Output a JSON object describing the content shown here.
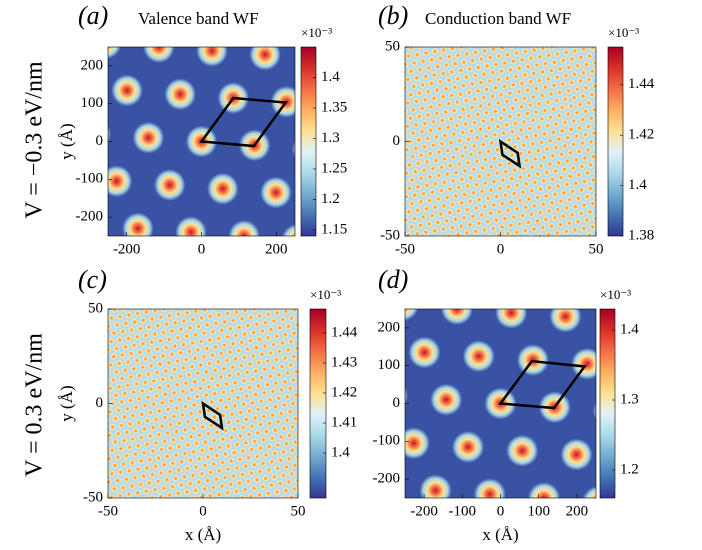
{
  "row_labels": [
    "V = −0.3 eV/nm",
    "V = 0.3 eV/nm"
  ],
  "chart_data": [
    {
      "type": "heatmap",
      "panel": "(a)",
      "title": "Valence band WF",
      "ylabel": "y (Å)",
      "xlim": [
        -250,
        250
      ],
      "ylim": [
        -250,
        250
      ],
      "xticks": [
        -200,
        0,
        200
      ],
      "yticks": [
        -200,
        -100,
        0,
        100,
        200
      ],
      "clim": [
        1.14,
        1.45
      ],
      "cticks": [
        1.15,
        1.2,
        1.25,
        1.3,
        1.35,
        1.4
      ],
      "cscale": "×10⁻³",
      "colormap": [
        "#313695",
        "#4575b4",
        "#74add1",
        "#abd9e9",
        "#e0f3f8",
        "#fee090",
        "#fdae61",
        "#f46d43",
        "#d73027",
        "#a50026"
      ],
      "background": "#3a52a3",
      "peak_colors": [
        "#c0182a",
        "#f46d43",
        "#fee090",
        "#abd9e9",
        "#3a52a3"
      ],
      "lattice": {
        "a1": [
          142,
          -10
        ],
        "a2": [
          85,
          115
        ],
        "radius": 42
      },
      "cell": {
        "x": [
          0,
          140,
          225,
          85
        ],
        "y": [
          0,
          -12,
          103,
          115
        ]
      }
    },
    {
      "type": "heatmap",
      "panel": "(b)",
      "title": "Conduction band WF",
      "xlim": [
        -50,
        50
      ],
      "ylim": [
        -50,
        50
      ],
      "xticks": [
        -50,
        0,
        50
      ],
      "yticks": [
        -50,
        0,
        50
      ],
      "clim": [
        1.38,
        1.455
      ],
      "cticks": [
        1.38,
        1.4,
        1.42,
        1.44
      ],
      "cscale": "×10⁻³",
      "colormap": [
        "#313695",
        "#4575b4",
        "#74add1",
        "#abd9e9",
        "#e0f3f8",
        "#fee090",
        "#fdae61",
        "#f46d43",
        "#d73027",
        "#a50026"
      ],
      "background": "#b9dcea",
      "peak_colors": [
        "#f57a45",
        "#fdb467",
        "#fee8a0",
        "#b9dcea"
      ],
      "lattice": {
        "a1": [
          4.6,
          0.8
        ],
        "a2": [
          1.6,
          4.4
        ],
        "radius": 1.9
      },
      "cell": {
        "x": [
          0,
          9,
          10,
          1
        ],
        "y": [
          0,
          -6,
          -13,
          -7
        ]
      }
    },
    {
      "type": "heatmap",
      "panel": "(c)",
      "xlabel": "x (Å)",
      "ylabel": "y (Å)",
      "xlim": [
        -50,
        50
      ],
      "ylim": [
        -50,
        50
      ],
      "xticks": [
        -50,
        0,
        50
      ],
      "yticks": [
        -50,
        0,
        50
      ],
      "clim": [
        1.385,
        1.448
      ],
      "cticks": [
        1.4,
        1.41,
        1.42,
        1.43,
        1.44
      ],
      "cscale": "×10⁻³",
      "colormap": [
        "#313695",
        "#4575b4",
        "#74add1",
        "#abd9e9",
        "#e0f3f8",
        "#fee090",
        "#fdae61",
        "#f46d43",
        "#d73027",
        "#a50026"
      ],
      "background": "#b9dcea",
      "peak_colors": [
        "#f57a45",
        "#fdb467",
        "#fee8a0",
        "#b9dcea"
      ],
      "lattice": {
        "a1": [
          4.6,
          0.8
        ],
        "a2": [
          1.6,
          4.4
        ],
        "radius": 1.9
      },
      "cell": {
        "x": [
          0,
          9,
          10,
          1
        ],
        "y": [
          0,
          -6,
          -13,
          -7
        ]
      }
    },
    {
      "type": "heatmap",
      "panel": "(d)",
      "xlabel": "x (Å)",
      "xlim": [
        -250,
        250
      ],
      "ylim": [
        -250,
        250
      ],
      "xticks": [
        -200,
        -100,
        0,
        100,
        200
      ],
      "yticks": [
        -200,
        -100,
        0,
        100,
        200
      ],
      "clim": [
        1.16,
        1.43
      ],
      "cticks": [
        1.2,
        1.3,
        1.4
      ],
      "cscale": "×10⁻³",
      "colormap": [
        "#313695",
        "#4575b4",
        "#74add1",
        "#abd9e9",
        "#e0f3f8",
        "#fee090",
        "#fdae61",
        "#f46d43",
        "#d73027",
        "#a50026"
      ],
      "background": "#3a52a3",
      "peak_colors": [
        "#c0182a",
        "#f46d43",
        "#fee090",
        "#abd9e9",
        "#3a52a3"
      ],
      "lattice": {
        "a1": [
          142,
          -10
        ],
        "a2": [
          85,
          115
        ],
        "radius": 42
      },
      "cell": {
        "x": [
          0,
          140,
          220,
          82
        ],
        "y": [
          0,
          -12,
          98,
          112
        ]
      }
    }
  ]
}
